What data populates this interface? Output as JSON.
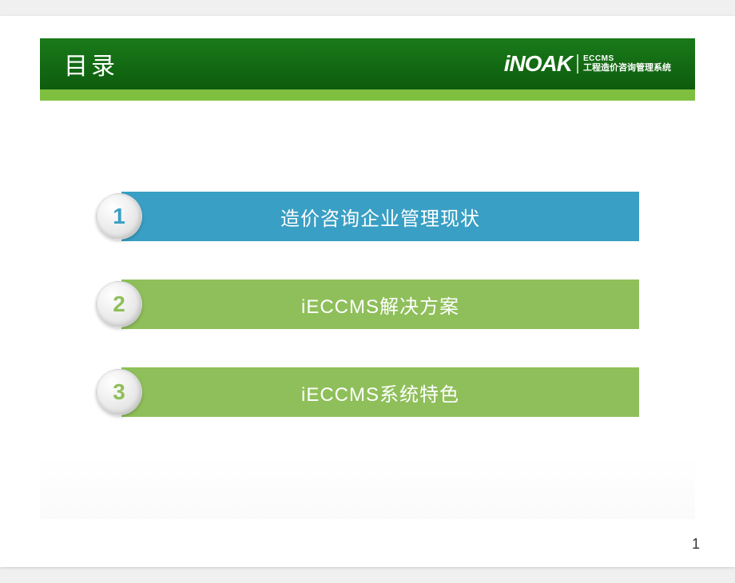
{
  "header": {
    "title": "目录",
    "bg_gradient_top": "#1a7a1a",
    "bg_gradient_bottom": "#0d5c0d",
    "underline_color": "#7fbf3f",
    "logo": {
      "mark": "iNOAK",
      "line1": "ECCMS",
      "line2": "工程造价咨询管理系统"
    }
  },
  "toc": {
    "items": [
      {
        "number": "1",
        "label": "造价咨询企业管理现状",
        "bar_color": "#3a9fc4",
        "badge_text_color": "#3a9fc4"
      },
      {
        "number": "2",
        "label": "iECCMS解决方案",
        "bar_color": "#8fbf5a",
        "badge_text_color": "#8fbf5a"
      },
      {
        "number": "3",
        "label": "iECCMS系统特色",
        "bar_color": "#8fbf5a",
        "badge_text_color": "#8fbf5a"
      }
    ]
  },
  "page_number": "1",
  "colors": {
    "slide_bg": "#ffffff",
    "text_white": "#ffffff",
    "page_num_color": "#333333"
  },
  "layout": {
    "slide_w": 920,
    "slide_h": 690,
    "toc_item_height": 62,
    "toc_gap": 48,
    "badge_diameter": 58
  }
}
